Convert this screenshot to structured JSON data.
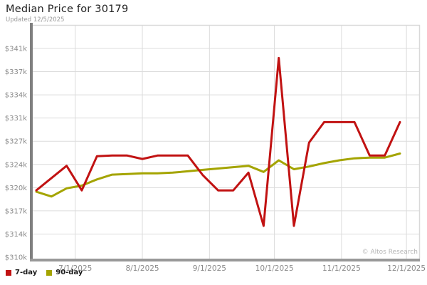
{
  "chart_data": {
    "type": "line",
    "title": "Median Price for 30179",
    "subtitle": "Updated 12/5/2025",
    "watermark": "© Altos Research",
    "units": "USD thousands (k)",
    "grid": true,
    "legend_position": "bottom-left",
    "x": [
      "2025-06-13",
      "2025-06-20",
      "2025-06-27",
      "2025-07-04",
      "2025-07-11",
      "2025-07-18",
      "2025-07-25",
      "2025-08-01",
      "2025-08-08",
      "2025-08-15",
      "2025-08-22",
      "2025-08-29",
      "2025-09-05",
      "2025-09-12",
      "2025-09-19",
      "2025-09-26",
      "2025-10-03",
      "2025-10-10",
      "2025-10-17",
      "2025-10-24",
      "2025-10-31",
      "2025-11-07",
      "2025-11-14",
      "2025-11-21",
      "2025-11-28"
    ],
    "series": [
      {
        "name": "7-day",
        "color": "#c11212",
        "values": [
          320.0,
          321.8,
          323.6,
          320.0,
          325.0,
          325.1,
          325.1,
          324.6,
          325.1,
          325.1,
          325.1,
          322.2,
          320.0,
          320.0,
          322.6,
          314.8,
          339.4,
          314.8,
          327.0,
          330.0,
          330.0,
          330.0,
          325.1,
          325.1,
          330.0
        ]
      },
      {
        "name": "90-day",
        "color": "#a4a400",
        "values": [
          319.8,
          319.1,
          320.3,
          320.7,
          321.6,
          322.3,
          322.4,
          322.5,
          322.5,
          322.6,
          322.8,
          323.0,
          323.2,
          323.4,
          323.6,
          322.7,
          324.4,
          323.1,
          323.5,
          324.0,
          324.4,
          324.7,
          324.8,
          324.8,
          325.4
        ]
      }
    ],
    "legend": [
      {
        "label": "7-day",
        "color": "#c11212"
      },
      {
        "label": "90-day",
        "color": "#a4a400"
      }
    ],
    "y_axis": {
      "min": 310.2,
      "max": 340.8,
      "ticks": [
        {
          "value": 340.8,
          "label": "$341k"
        },
        {
          "value": 337.4,
          "label": "$337k"
        },
        {
          "value": 334.0,
          "label": "$334k"
        },
        {
          "value": 330.6,
          "label": "$331k"
        },
        {
          "value": 327.2,
          "label": "$327k"
        },
        {
          "value": 323.8,
          "label": "$324k"
        },
        {
          "value": 320.4,
          "label": "$320k"
        },
        {
          "value": 317.0,
          "label": "$317k"
        },
        {
          "value": 313.6,
          "label": "$314k"
        },
        {
          "value": 310.2,
          "label": "$310k"
        }
      ]
    },
    "x_axis": {
      "ticks": [
        {
          "date": "2025-07-01",
          "label": "7/1/2025"
        },
        {
          "date": "2025-08-01",
          "label": "8/1/2025"
        },
        {
          "date": "2025-09-01",
          "label": "9/1/2025"
        },
        {
          "date": "2025-10-01",
          "label": "10/1/2025"
        },
        {
          "date": "2025-11-01",
          "label": "11/1/2025"
        },
        {
          "date": "2025-12-01",
          "label": "12/1/2025"
        }
      ]
    },
    "colors": {
      "series_7_day": "#c11212",
      "series_90_day": "#a4a400",
      "gridline": "#dcdcdc",
      "left_axis_bar": "#7f7f7f",
      "bottom_axis_bar": "#999999",
      "border_light": "#d9d9d9",
      "tick_label": "#8a8a8a",
      "title_text": "#222222",
      "subtitle_text": "#999999",
      "watermark_text": "#b5b5b5",
      "legend_text": "#1a1a1a",
      "background": "#ffffff"
    }
  }
}
